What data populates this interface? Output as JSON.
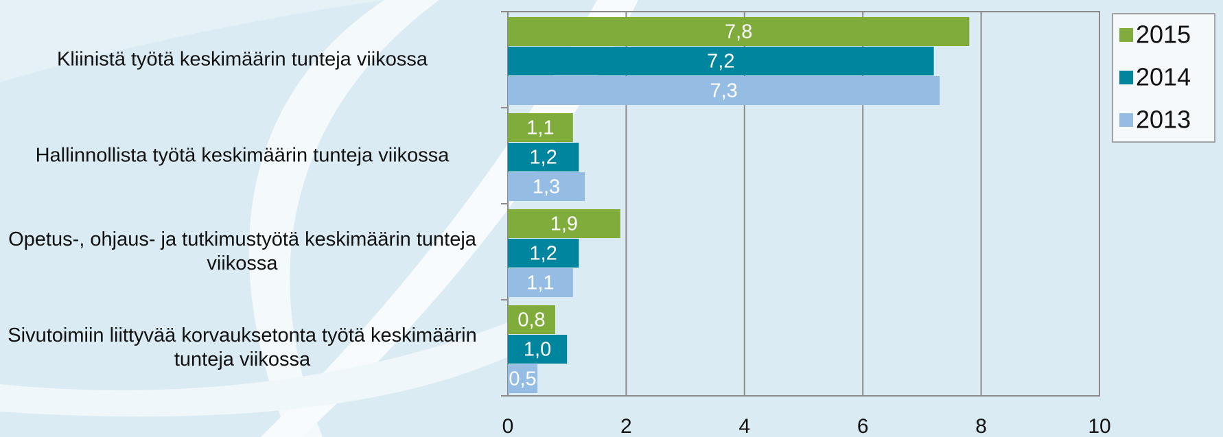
{
  "chart_data": {
    "type": "bar",
    "orientation": "horizontal",
    "categories": [
      "Kliinistä työtä keskimäärin tunteja viikossa",
      "Hallinnollista työtä keskimäärin tunteja viikossa",
      "Opetus-, ohjaus- ja tutkimustyötä keskimäärin tunteja viikossa",
      "Sivutoimiin liittyvää korvauksetonta työtä keskimäärin tunteja viikossa"
    ],
    "series": [
      {
        "name": "2015",
        "color": "#7fac3a",
        "values": [
          7.8,
          1.1,
          1.9,
          0.8
        ],
        "value_labels": [
          "7,8",
          "1,1",
          "1,9",
          "0,8"
        ]
      },
      {
        "name": "2014",
        "color": "#00859e",
        "values": [
          7.2,
          1.2,
          1.2,
          1.0
        ],
        "value_labels": [
          "7,2",
          "1,2",
          "1,2",
          "1,0"
        ]
      },
      {
        "name": "2013",
        "color": "#95bde3",
        "values": [
          7.3,
          1.3,
          1.1,
          0.5
        ],
        "value_labels": [
          "7,3",
          "1,3",
          "1,1",
          "0,5"
        ]
      }
    ],
    "xlim": [
      0,
      10
    ],
    "xticks": [
      0,
      2,
      4,
      6,
      8,
      10
    ],
    "grid": true,
    "legend": "right"
  }
}
